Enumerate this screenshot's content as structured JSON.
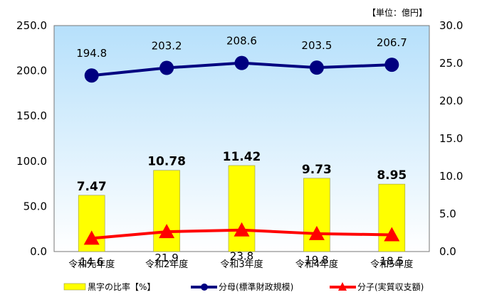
{
  "chart_data": {
    "type": "bar+line",
    "unit_note": "【単位：億円】",
    "categories": [
      "令和元年度",
      "令和2年度",
      "令和3年度",
      "令和4年度",
      "令和5年度"
    ],
    "left_axis": {
      "min": 0,
      "max": 250,
      "ticks": [
        "0.0",
        "50.0",
        "100.0",
        "150.0",
        "200.0",
        "250.0"
      ]
    },
    "right_axis": {
      "min": 0,
      "max": 30,
      "ticks": [
        "0.0",
        "5.0",
        "10.0",
        "15.0",
        "20.0",
        "25.0",
        "30.0"
      ]
    },
    "series": [
      {
        "name": "黒字の比率【%】",
        "kind": "bar",
        "axis": "right",
        "color": "#ffff00",
        "values": [
          7.47,
          10.78,
          11.42,
          9.73,
          8.95
        ],
        "labels": [
          "7.47",
          "10.78",
          "11.42",
          "9.73",
          "8.95"
        ]
      },
      {
        "name": "分母(標準財政規模)",
        "kind": "line",
        "axis": "left",
        "color": "#000080",
        "marker": "circle",
        "values": [
          194.8,
          203.2,
          208.6,
          203.5,
          206.7
        ],
        "labels": [
          "194.8",
          "203.2",
          "208.6",
          "203.5",
          "206.7"
        ]
      },
      {
        "name": "分子(実質収支額)",
        "kind": "line",
        "axis": "left",
        "color": "#ff0000",
        "marker": "triangle",
        "values": [
          14.6,
          21.9,
          23.8,
          19.8,
          18.5
        ],
        "labels": [
          "14.6",
          "21.9",
          "23.8",
          "19.8",
          "18.5"
        ]
      }
    ],
    "legend": [
      "黒字の比率【%】",
      "分母(標準財政規模)",
      "分子(実質収支額)"
    ]
  }
}
